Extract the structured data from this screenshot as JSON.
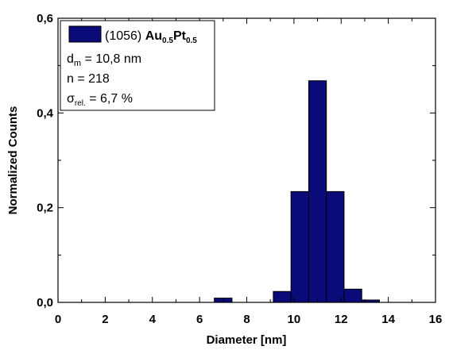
{
  "chart_data": {
    "type": "bar",
    "xlabel": "Diameter [nm]",
    "ylabel": "Normalized Counts",
    "xlim": [
      0,
      16
    ],
    "ylim": [
      0,
      0.6
    ],
    "x_ticks": [
      "0",
      "2",
      "4",
      "6",
      "8",
      "10",
      "12",
      "14",
      "16"
    ],
    "y_ticks": [
      "0,0",
      "0,2",
      "0,4",
      "0,6"
    ],
    "bar_width": 0.75,
    "x": [
      7,
      9.5,
      10.25,
      11,
      11.75,
      12.5,
      13.25
    ],
    "values": [
      0.009,
      0.023,
      0.234,
      0.468,
      0.234,
      0.028,
      0.005
    ],
    "bar_color": "#0a0a78",
    "legend": {
      "series_label_prefix": "(1056) ",
      "series_label_au": "Au",
      "series_label_sub1": "0.5",
      "series_label_pt": "Pt",
      "series_label_sub2": "0.5",
      "dm_symbol": "d",
      "dm_sub": "m",
      "dm_value": " = 10,8 nm",
      "n_line": "n = 218",
      "sigma_symbol": "σ",
      "sigma_sub": "rel.",
      "sigma_value": " = 6,7 %",
      "placement": "top-left"
    }
  }
}
